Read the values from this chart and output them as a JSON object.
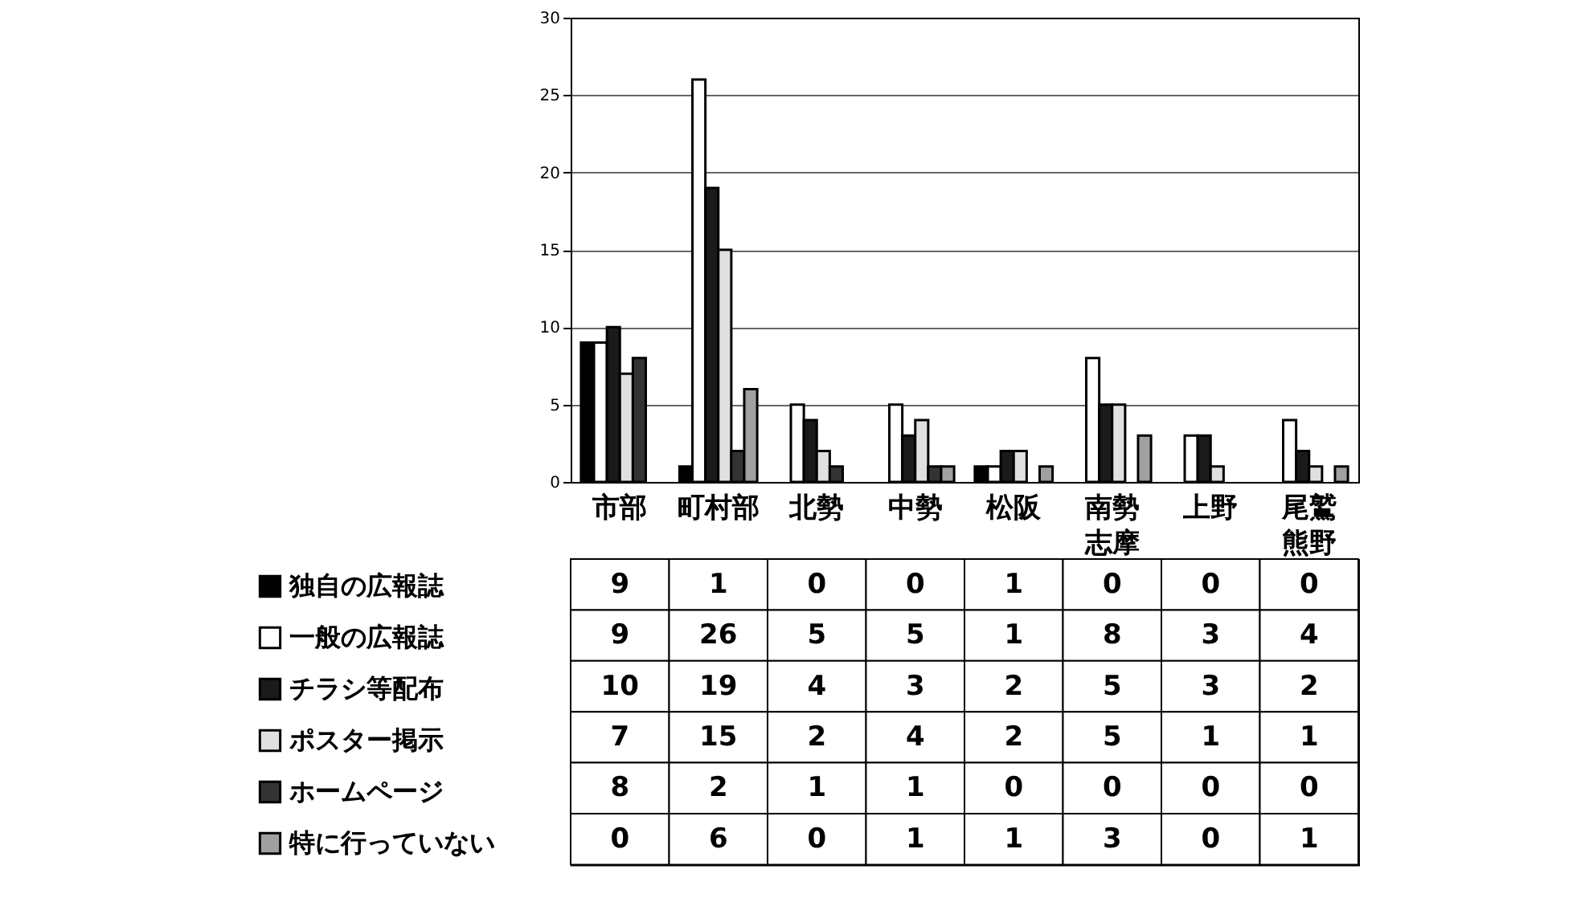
{
  "chart_data": {
    "type": "bar",
    "categories": [
      "市部",
      "町村部",
      "北勢",
      "中勢",
      "松阪",
      "南勢志摩",
      "上野",
      "尾鷲熊野"
    ],
    "series": [
      {
        "name": "独自の広報誌",
        "color": "#000000",
        "values": [
          9,
          1,
          0,
          0,
          1,
          0,
          0,
          0
        ]
      },
      {
        "name": "一般の広報誌",
        "color": "#ffffff",
        "values": [
          9,
          26,
          5,
          5,
          1,
          8,
          3,
          4
        ]
      },
      {
        "name": "チラシ等配布",
        "color": "#1a1a1a",
        "values": [
          10,
          19,
          4,
          3,
          2,
          5,
          3,
          2
        ]
      },
      {
        "name": "ポスター掲示",
        "color": "#e0e0e0",
        "values": [
          7,
          15,
          2,
          4,
          2,
          5,
          1,
          1
        ]
      },
      {
        "name": "ホームページ",
        "color": "#333333",
        "values": [
          8,
          2,
          1,
          1,
          0,
          0,
          0,
          0
        ]
      },
      {
        "name": "特に行っていない",
        "color": "#a0a0a0",
        "values": [
          0,
          6,
          0,
          1,
          1,
          3,
          0,
          1
        ]
      }
    ],
    "ylim": [
      0,
      30
    ],
    "yticks": [
      0,
      5,
      10,
      15,
      20,
      25,
      30
    ],
    "grid": "y",
    "legend": "bottom left",
    "data_labels": true
  }
}
